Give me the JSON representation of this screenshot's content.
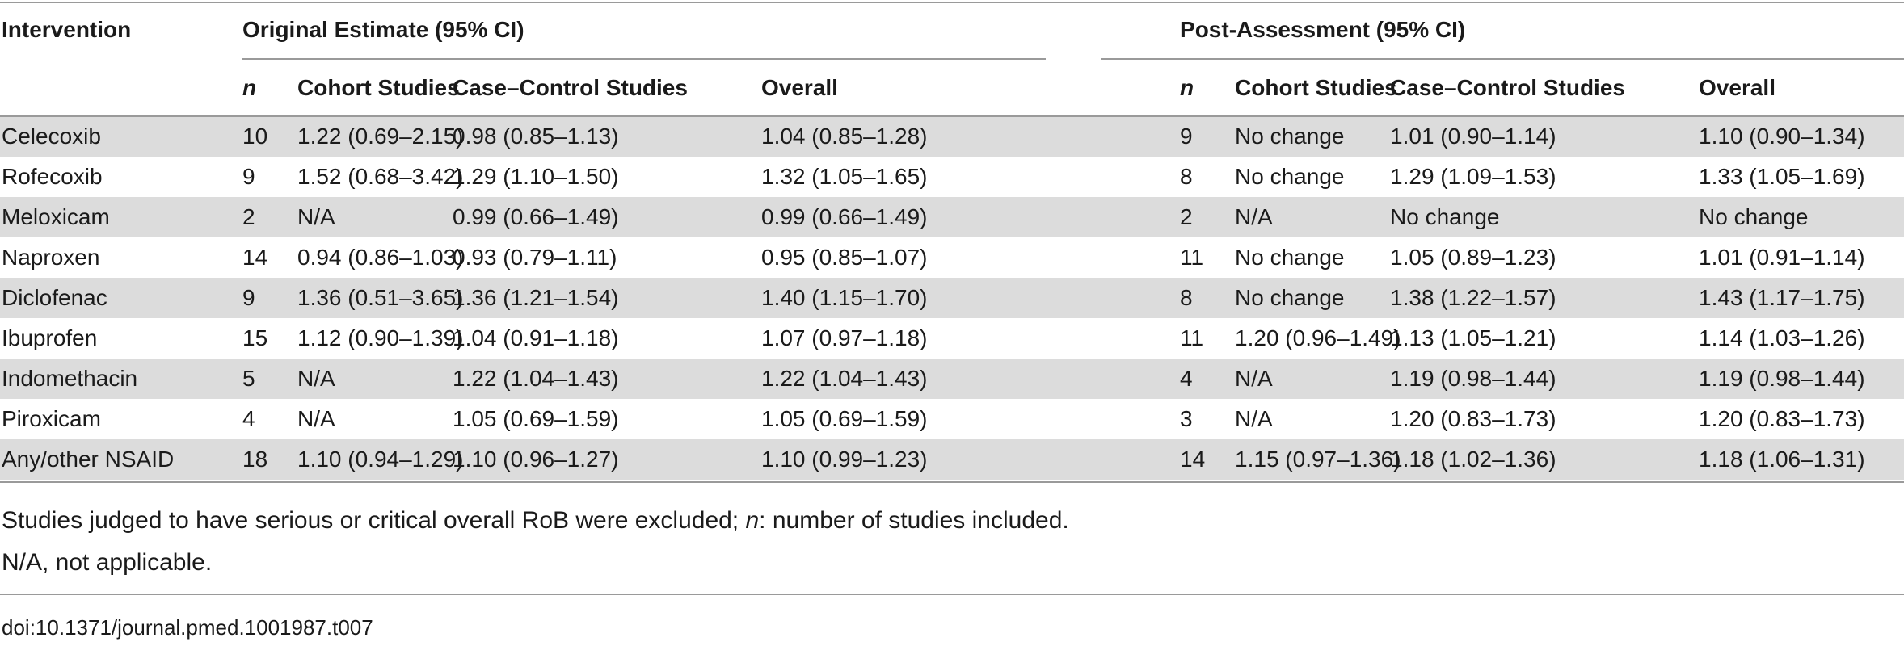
{
  "table": {
    "group_headers": {
      "intervention": "Intervention",
      "original": "Original Estimate (95% CI)",
      "post": "Post-Assessment (95% CI)"
    },
    "sub_headers": {
      "n": "n",
      "cohort": "Cohort Studies",
      "case_control": "Case–Control Studies",
      "overall": "Overall"
    },
    "rows": [
      {
        "intervention": "Celecoxib",
        "orig_n": "10",
        "orig_cohort": "1.22 (0.69–2.15)",
        "orig_cc": "0.98 (0.85–1.13)",
        "orig_overall": "1.04 (0.85–1.28)",
        "post_n": "9",
        "post_cohort": "No change",
        "post_cc": "1.01 (0.90–1.14)",
        "post_overall": "1.10 (0.90–1.34)"
      },
      {
        "intervention": "Rofecoxib",
        "orig_n": "9",
        "orig_cohort": "1.52 (0.68–3.42)",
        "orig_cc": "1.29 (1.10–1.50)",
        "orig_overall": "1.32 (1.05–1.65)",
        "post_n": "8",
        "post_cohort": "No change",
        "post_cc": "1.29 (1.09–1.53)",
        "post_overall": "1.33 (1.05–1.69)"
      },
      {
        "intervention": "Meloxicam",
        "orig_n": "2",
        "orig_cohort": "N/A",
        "orig_cc": "0.99 (0.66–1.49)",
        "orig_overall": "0.99 (0.66–1.49)",
        "post_n": "2",
        "post_cohort": "N/A",
        "post_cc": "No change",
        "post_overall": "No change"
      },
      {
        "intervention": "Naproxen",
        "orig_n": "14",
        "orig_cohort": "0.94 (0.86–1.03)",
        "orig_cc": "0.93 (0.79–1.11)",
        "orig_overall": "0.95 (0.85–1.07)",
        "post_n": "11",
        "post_cohort": "No change",
        "post_cc": "1.05 (0.89–1.23)",
        "post_overall": "1.01 (0.91–1.14)"
      },
      {
        "intervention": "Diclofenac",
        "orig_n": "9",
        "orig_cohort": "1.36 (0.51–3.65)",
        "orig_cc": "1.36 (1.21–1.54)",
        "orig_overall": "1.40 (1.15–1.70)",
        "post_n": "8",
        "post_cohort": "No change",
        "post_cc": "1.38 (1.22–1.57)",
        "post_overall": "1.43 (1.17–1.75)"
      },
      {
        "intervention": "Ibuprofen",
        "orig_n": "15",
        "orig_cohort": "1.12 (0.90–1.39)",
        "orig_cc": "1.04 (0.91–1.18)",
        "orig_overall": "1.07 (0.97–1.18)",
        "post_n": "11",
        "post_cohort": "1.20 (0.96–1.49)",
        "post_cc": "1.13 (1.05–1.21)",
        "post_overall": "1.14 (1.03–1.26)"
      },
      {
        "intervention": "Indomethacin",
        "orig_n": "5",
        "orig_cohort": "N/A",
        "orig_cc": "1.22 (1.04–1.43)",
        "orig_overall": "1.22 (1.04–1.43)",
        "post_n": "4",
        "post_cohort": "N/A",
        "post_cc": "1.19 (0.98–1.44)",
        "post_overall": "1.19 (0.98–1.44)"
      },
      {
        "intervention": "Piroxicam",
        "orig_n": "4",
        "orig_cohort": "N/A",
        "orig_cc": "1.05 (0.69–1.59)",
        "orig_overall": "1.05 (0.69–1.59)",
        "post_n": "3",
        "post_cohort": "N/A",
        "post_cc": "1.20 (0.83–1.73)",
        "post_overall": "1.20 (0.83–1.73)"
      },
      {
        "intervention": "Any/other NSAID",
        "orig_n": "18",
        "orig_cohort": "1.10 (0.94–1.29)",
        "orig_cc": "1.10 (0.96–1.27)",
        "orig_overall": "1.10 (0.99–1.23)",
        "post_n": "14",
        "post_cohort": "1.15 (0.97–1.36)",
        "post_cc": "1.18 (1.02–1.36)",
        "post_overall": "1.18 (1.06–1.31)"
      }
    ]
  },
  "footnotes": {
    "line1_before": "Studies judged to have serious or critical overall RoB were excluded; ",
    "line1_n": "n",
    "line1_after": ": number of studies included.",
    "line2": "N/A, not applicable."
  },
  "doi": "doi:10.1371/journal.pmed.1001987.t007",
  "colors": {
    "row_shade": "#dcdcdc",
    "rule": "#9a9a9a"
  }
}
